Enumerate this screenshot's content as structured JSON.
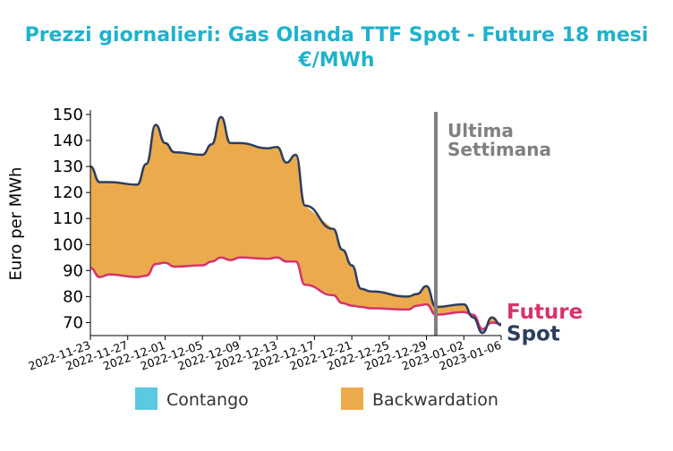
{
  "title_line1": "Prezzi giornalieri: Gas Olanda TTF Spot - Future 18 mesi",
  "title_line2": "€/MWh",
  "chart_data": {
    "type": "area",
    "title": "Prezzi giornalieri: Gas Olanda TTF Spot - Future 18 mesi €/MWh",
    "ylabel": "Euro per MWh",
    "xlabel": "",
    "ylim": [
      65,
      151
    ],
    "yticks": [
      70,
      80,
      90,
      100,
      110,
      120,
      130,
      140,
      150
    ],
    "xlim": [
      "2022-11-23",
      "2023-01-06"
    ],
    "xticks": [
      "2022-11-23",
      "2022-11-27",
      "2022-12-01",
      "2022-12-05",
      "2022-12-09",
      "2022-12-13",
      "2022-12-17",
      "2022-12-21",
      "2022-12-25",
      "2022-12-29",
      "2023-01-02",
      "2023-01-06"
    ],
    "dates": [
      "2022-11-23",
      "2022-11-24",
      "2022-11-25",
      "2022-11-28",
      "2022-11-29",
      "2022-11-30",
      "2022-12-01",
      "2022-12-02",
      "2022-12-05",
      "2022-12-06",
      "2022-12-07",
      "2022-12-08",
      "2022-12-09",
      "2022-12-12",
      "2022-12-13",
      "2022-12-14",
      "2022-12-15",
      "2022-12-16",
      "2022-12-19",
      "2022-12-20",
      "2022-12-21",
      "2022-12-22",
      "2022-12-23",
      "2022-12-27",
      "2022-12-28",
      "2022-12-29",
      "2022-12-30",
      "2023-01-02",
      "2023-01-03",
      "2023-01-04",
      "2023-01-05",
      "2023-01-06"
    ],
    "series": [
      {
        "name": "Spot",
        "color": "#2c3e5f",
        "values": [
          130,
          124,
          124,
          123,
          131,
          146,
          139,
          135.5,
          134.5,
          138.5,
          149,
          139,
          139,
          137,
          137.5,
          131.5,
          134.5,
          115,
          106,
          98,
          92,
          83,
          82,
          80,
          81,
          84,
          76,
          77,
          72,
          66,
          72,
          69
        ]
      },
      {
        "name": "Future",
        "color": "#d6336c",
        "values": [
          91,
          87.5,
          88.5,
          87.5,
          88,
          92.5,
          93,
          91.5,
          92,
          93.5,
          95,
          94,
          95,
          94.5,
          95,
          93.5,
          93.5,
          84.5,
          80.5,
          77.5,
          76.5,
          76,
          75.5,
          75,
          76.5,
          77,
          73,
          74,
          73,
          67.5,
          70,
          69.5
        ]
      }
    ],
    "fill_legend": [
      {
        "name": "Contango",
        "color": "#5bc9e1"
      },
      {
        "name": "Backwardation",
        "color": "#ebab4d"
      }
    ],
    "vline": {
      "date": "2022-12-30",
      "label_line1": "Ultima",
      "label_line2": "Settimana",
      "color": "#808080"
    },
    "end_labels": {
      "future": "Future",
      "spot": "Spot"
    },
    "grid": false
  }
}
